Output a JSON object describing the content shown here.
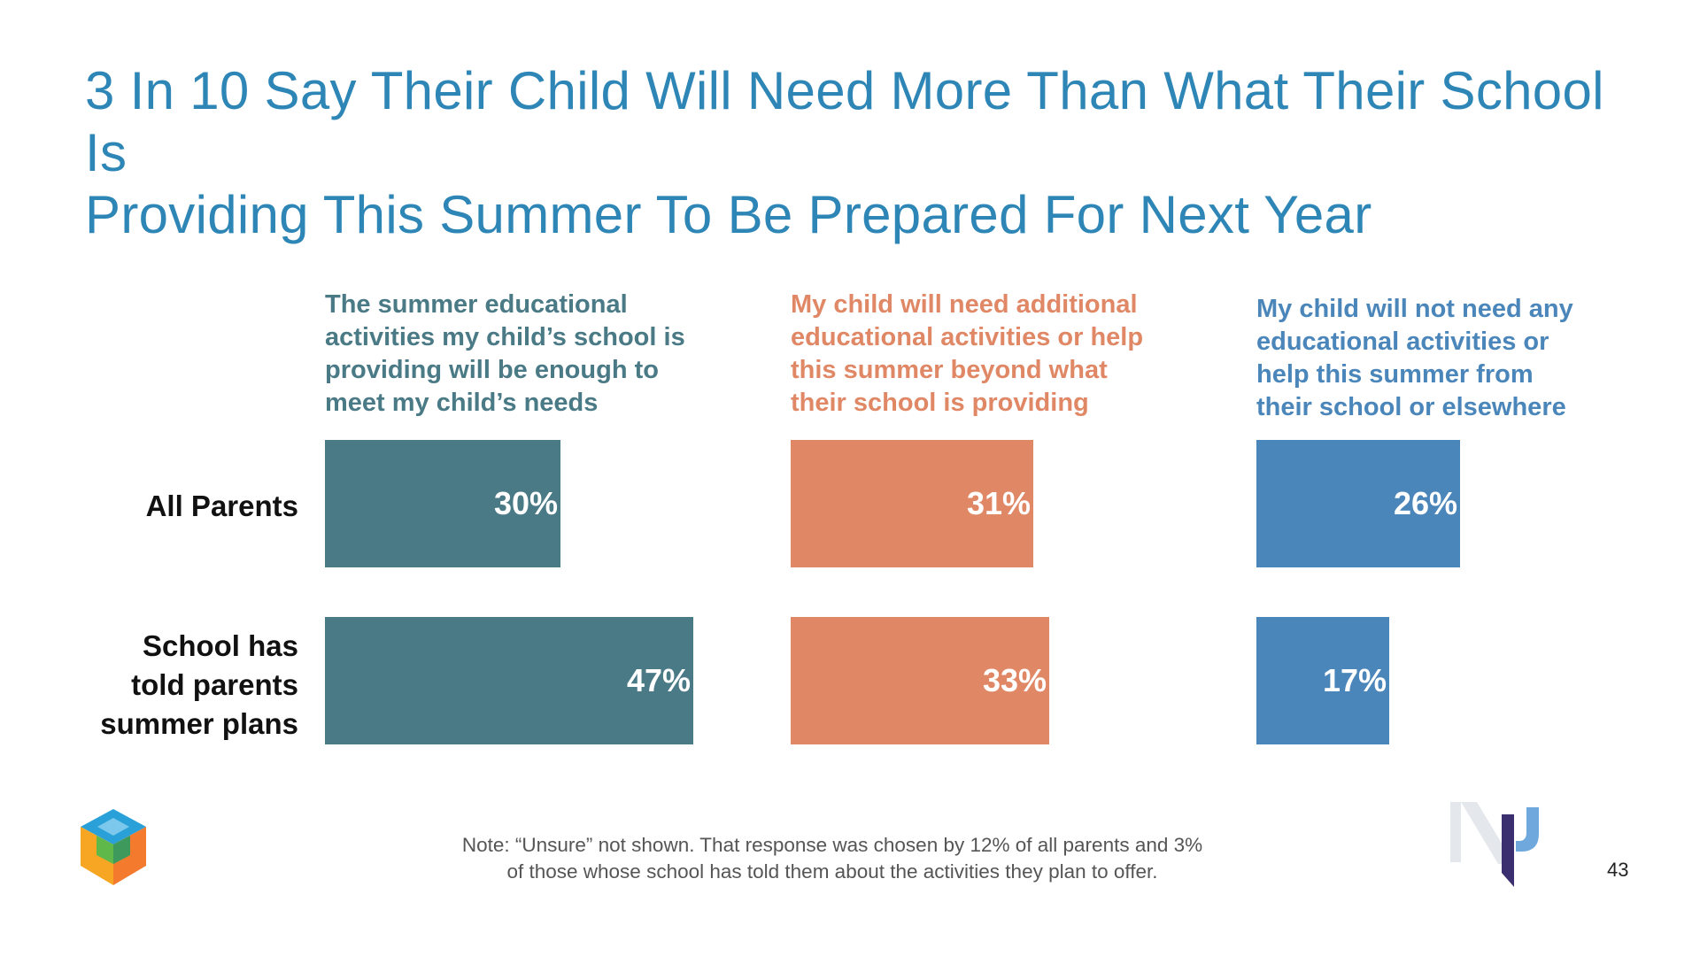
{
  "page": {
    "title_line1": "3 In 10 Say Their Child Will Need More Than What Their School Is",
    "title_line2": "Providing This Summer To Be Prepared For Next Year",
    "note_line1": "Note: “Unsure” not shown. That response was chosen by 12% of all parents and 3%",
    "note_line2": "of those whose school has told them about the activities they plan to offer.",
    "page_number": "43"
  },
  "headers": [
    {
      "lines": [
        "The summer educational",
        "activities my child’s school is",
        "providing will be enough to",
        "meet my child’s needs"
      ],
      "color": "#4A7A85"
    },
    {
      "lines": [
        "My child will need additional",
        "educational activities or help",
        "this summer beyond what",
        "their school is providing"
      ],
      "color": "#E08866"
    },
    {
      "lines": [
        "My child will not need any",
        "educational activities or",
        "help this summer from",
        "their school or elsewhere"
      ],
      "color": "#4A86BA"
    }
  ],
  "rows": [
    {
      "lines": [
        "All Parents"
      ]
    },
    {
      "lines": [
        "School has",
        "told parents",
        "summer plans"
      ]
    }
  ],
  "chart_data": {
    "type": "bar",
    "orientation": "horizontal",
    "categories": [
      "All Parents",
      "School has told parents summer plans"
    ],
    "series": [
      {
        "name": "The summer educational activities my child’s school is providing will be enough to meet my child’s needs",
        "values": [
          30,
          47
        ],
        "labels": [
          "30%",
          "47%"
        ],
        "color": "#4A7A85"
      },
      {
        "name": "My child will need additional educational activities or help this summer beyond what their school is providing",
        "values": [
          31,
          33
        ],
        "labels": [
          "31%",
          "33%"
        ],
        "color": "#E08866"
      },
      {
        "name": "My child will not need any educational activities or help this summer from their school or elsewhere",
        "values": [
          26,
          17
        ],
        "labels": [
          "26%",
          "17%"
        ],
        "color": "#4A86BA"
      }
    ],
    "unit": "%",
    "grid": false
  }
}
